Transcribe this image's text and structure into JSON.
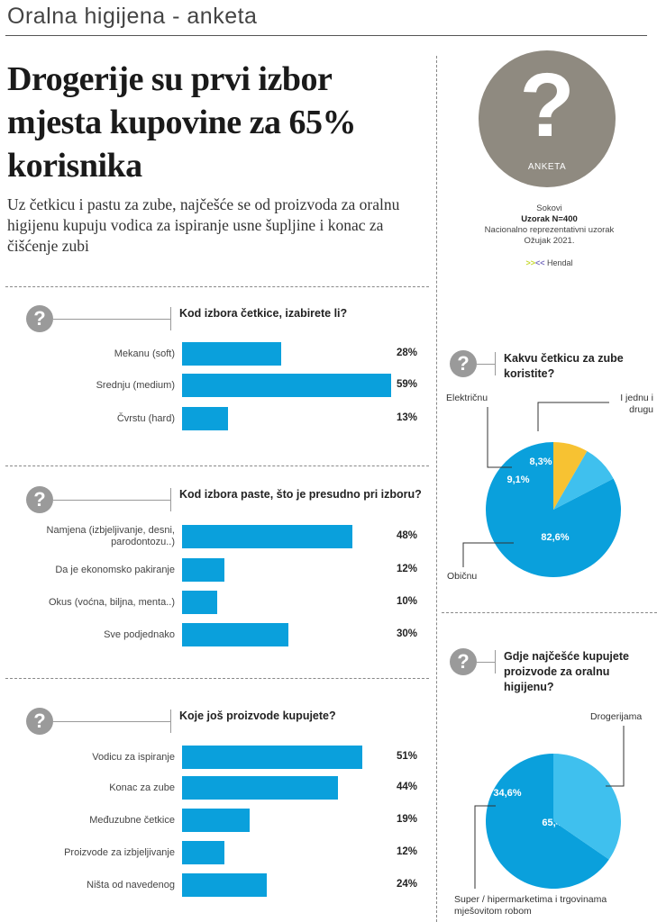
{
  "header": {
    "title": "Oralna higijena - anketa"
  },
  "headline": "Drogerije su prvi izbor mjesta kupovine za 65% korisnika",
  "subheadline": "Uz četkicu i pastu za zube, najčešće se od proizvoda za oralnu higijenu kupuju vodica za ispiranje usne šupljine i konac za čišćenje zubi",
  "badge": {
    "symbol": "?",
    "label": "ANKETA"
  },
  "meta": {
    "client": "Sokovi",
    "sample": "Uzorak N=400",
    "type": "Nacionalno reprezentativni uzorak",
    "date": "Ožujak 2021.",
    "agency": "Hendal"
  },
  "colors": {
    "bar": "#0aa0dc",
    "pie_main": "#0aa0dc",
    "pie_light": "#3fc0ee",
    "pie_yellow": "#f7c232",
    "icon": "#9a9a9a"
  },
  "chart_data": [
    {
      "type": "bar",
      "title": "Kod izbora četkice, izabirete li?",
      "categories": [
        "Mekanu (soft)",
        "Srednju (medium)",
        "Čvrstu (hard)"
      ],
      "values": [
        28,
        59,
        13
      ],
      "value_labels": [
        "28%",
        "59%",
        "13%"
      ],
      "unit": "%"
    },
    {
      "type": "bar",
      "title": "Kod izbora paste, što je presudno pri izboru?",
      "categories": [
        "Namjena (izbjeljivanje, desni, parodontozu..)",
        "Da je ekonomsko pakiranje",
        "Okus (voćna, biljna, menta..)",
        "Sve podjednako"
      ],
      "values": [
        48,
        12,
        10,
        30
      ],
      "value_labels": [
        "48%",
        "12%",
        "10%",
        "30%"
      ],
      "unit": "%"
    },
    {
      "type": "bar",
      "title": "Koje još proizvode kupujete?",
      "categories": [
        "Vodicu za ispiranje",
        "Konac za zube",
        "Međuzubne četkice",
        "Proizvode za izbjeljivanje",
        "Ništa od navedenog"
      ],
      "values": [
        51,
        44,
        19,
        12,
        24
      ],
      "value_labels": [
        "51%",
        "44%",
        "19%",
        "12%",
        "24%"
      ],
      "unit": "%"
    },
    {
      "type": "pie",
      "title": "Kakvu četkicu za zube koristite?",
      "categories": [
        "Običnu",
        "Električnu",
        "I jednu i drugu"
      ],
      "values": [
        82.6,
        9.1,
        8.3
      ],
      "value_labels": [
        "82,6%",
        "9,1%",
        "8,3%"
      ]
    },
    {
      "type": "pie",
      "title": "Gdje najčešće kupujete proizvode za oralnu higijenu?",
      "categories": [
        "Drogerijama",
        "Super / hipermarketima i trgovinama mješovitom robom"
      ],
      "values": [
        65.4,
        34.6
      ],
      "value_labels": [
        "65,4%",
        "34,6%"
      ]
    }
  ]
}
